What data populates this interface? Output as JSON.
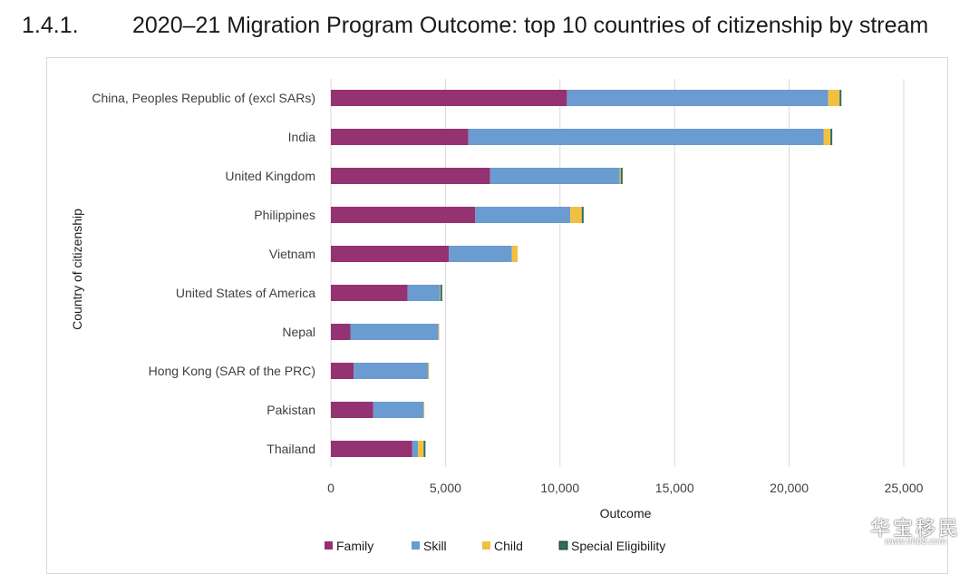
{
  "heading": {
    "number": "1.4.1.",
    "title": "2020–21 Migration Program Outcome: top 10 countries of citizenship by stream"
  },
  "watermark": {
    "main": "华宝移民",
    "sub": "www.hhb8.com"
  },
  "colors": {
    "Family": "#953272",
    "Skill": "#6a9bd1",
    "Child": "#f2c040",
    "Special Eligibility": "#2b6e5f",
    "grid": "#d9d9d9",
    "text": "#404040"
  },
  "chart_data": {
    "type": "bar",
    "orientation": "horizontal",
    "stacked": true,
    "xlabel": "Outcome",
    "ylabel": "Country of citizenship",
    "xlim": [
      0,
      25000
    ],
    "xticks": [
      0,
      5000,
      10000,
      15000,
      20000,
      25000
    ],
    "xtick_labels": [
      "0",
      "5,000",
      "10,000",
      "15,000",
      "20,000",
      "25,000"
    ],
    "grid": "vertical",
    "legend_position": "bottom",
    "categories": [
      "China, Peoples Republic of (excl SARs)",
      "India",
      "United Kingdom",
      "Philippines",
      "Vietnam",
      "United States of America",
      "Nepal",
      "Hong Kong (SAR of the PRC)",
      "Pakistan",
      "Thailand"
    ],
    "series": [
      {
        "name": "Family",
        "values": [
          10300,
          6000,
          6950,
          6300,
          5150,
          3350,
          850,
          1000,
          1850,
          3550
        ]
      },
      {
        "name": "Skill",
        "values": [
          11400,
          15500,
          5650,
          4150,
          2750,
          1400,
          3850,
          3250,
          2200,
          250
        ]
      },
      {
        "name": "Child",
        "values": [
          500,
          300,
          50,
          500,
          250,
          30,
          30,
          30,
          30,
          250
        ]
      },
      {
        "name": "Special Eligibility",
        "values": [
          30,
          80,
          80,
          40,
          0,
          60,
          0,
          0,
          0,
          40
        ]
      }
    ]
  }
}
